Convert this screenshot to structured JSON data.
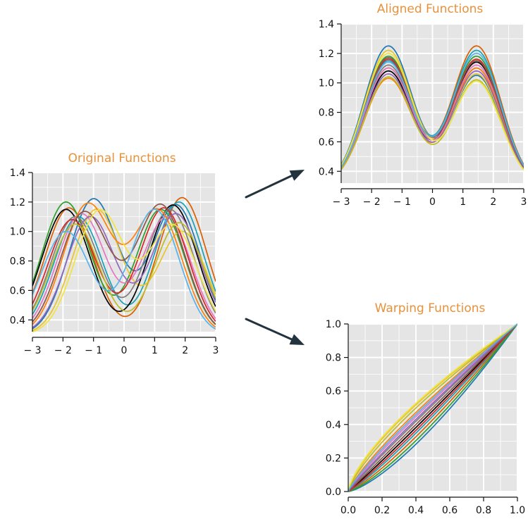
{
  "chart_data": [
    {
      "id": "original",
      "type": "line",
      "title": "Original Functions",
      "xlabel": "",
      "ylabel": "",
      "xlim": [
        -3,
        3
      ],
      "ylim": [
        0.32,
        1.4
      ],
      "grid": true,
      "x_ticks": [
        -3,
        -2,
        -1,
        0,
        1,
        2,
        3
      ],
      "x_tick_labels": [
        "− 3",
        "− 2",
        "− 1",
        "0",
        "1",
        "2",
        "3"
      ],
      "y_ticks": [
        0.4,
        0.6,
        0.8,
        1.0,
        1.2,
        1.4
      ],
      "y_tick_labels": [
        "0.4",
        "0.6",
        "0.8",
        "1.0",
        "1.2",
        "1.4"
      ],
      "function_model": "y = base + a1*exp(-(x-m1)^2/(2*0.8^2)) + a2*exp(-(x-m2)^2/(2*0.8^2))",
      "base": 0.3,
      "series": [
        {
          "color": "#1f77b4",
          "a1": 0.92,
          "m1": -1.0,
          "a2": 0.88,
          "m2": 1.7
        },
        {
          "color": "#d95f02",
          "a1": 0.86,
          "m1": -1.8,
          "a2": 0.93,
          "m2": 1.9
        },
        {
          "color": "#2ca02c",
          "a1": 0.9,
          "m1": -1.9,
          "a2": 0.85,
          "m2": 1.2
        },
        {
          "color": "#17a2b8",
          "a1": 0.8,
          "m1": -1.5,
          "a2": 0.9,
          "m2": 1.8
        },
        {
          "color": "#e8c42a",
          "a1": 0.85,
          "m1": -0.9,
          "a2": 0.7,
          "m2": 1.9
        },
        {
          "color": "#000000",
          "a1": 0.85,
          "m1": -1.9,
          "a2": 0.88,
          "m2": 1.6
        },
        {
          "color": "#7f7f7f",
          "a1": 0.8,
          "m1": -1.6,
          "a2": 0.85,
          "m2": 1.5
        },
        {
          "color": "#e377c2",
          "a1": 0.82,
          "m1": -1.4,
          "a2": 0.8,
          "m2": 1.4
        },
        {
          "color": "#ff7f0e",
          "a1": 0.88,
          "m1": -1.2,
          "a2": 0.84,
          "m2": 1.1
        },
        {
          "color": "#d62728",
          "a1": 0.78,
          "m1": -1.7,
          "a2": 0.86,
          "m2": 1.3
        },
        {
          "color": "#9467bd",
          "a1": 0.8,
          "m1": -1.1,
          "a2": 0.82,
          "m2": 1.7
        },
        {
          "color": "#8c564b",
          "a1": 0.83,
          "m1": -1.3,
          "a2": 0.88,
          "m2": 1.2
        },
        {
          "color": "#bcbd22",
          "a1": 0.75,
          "m1": -1.6,
          "a2": 0.76,
          "m2": 1.8
        },
        {
          "color": "#f0e442",
          "a1": 0.84,
          "m1": -0.8,
          "a2": 0.74,
          "m2": 1.6
        },
        {
          "color": "#56b4e9",
          "a1": 0.7,
          "m1": -1.9,
          "a2": 0.85,
          "m2": 1.0
        }
      ]
    },
    {
      "id": "aligned",
      "type": "line",
      "title": "Aligned Functions",
      "xlabel": "",
      "ylabel": "",
      "xlim": [
        -3,
        3
      ],
      "ylim": [
        0.32,
        1.4
      ],
      "grid": true,
      "x_ticks": [
        -3,
        -2,
        -1,
        0,
        1,
        2,
        3
      ],
      "x_tick_labels": [
        "− 3",
        "− 2",
        "− 1",
        "0",
        "1",
        "2",
        "3"
      ],
      "y_ticks": [
        0.4,
        0.6,
        0.8,
        1.0,
        1.2,
        1.4
      ],
      "y_tick_labels": [
        "0.4",
        "0.6",
        "0.8",
        "1.0",
        "1.2",
        "1.4"
      ],
      "function_model": "y = base + a1*exp(-(x+1.45)^2/(2*0.8^2)) + a2*exp(-(x-1.45)^2/(2*0.8^2))",
      "base": 0.3,
      "series": [
        {
          "color": "#1f77b4",
          "a1": 0.95,
          "a2": 0.75
        },
        {
          "color": "#d95f02",
          "a1": 0.8,
          "a2": 0.95
        },
        {
          "color": "#2ca02c",
          "a1": 0.88,
          "a2": 0.88
        },
        {
          "color": "#17a2b8",
          "a1": 0.85,
          "a2": 0.92
        },
        {
          "color": "#e8c42a",
          "a1": 0.92,
          "a2": 0.76
        },
        {
          "color": "#000000",
          "a1": 0.78,
          "a2": 0.84
        },
        {
          "color": "#7f7f7f",
          "a1": 0.82,
          "a2": 0.8
        },
        {
          "color": "#e377c2",
          "a1": 0.8,
          "a2": 0.82
        },
        {
          "color": "#ff7f0e",
          "a1": 0.73,
          "a2": 0.8
        },
        {
          "color": "#d62728",
          "a1": 0.86,
          "a2": 0.86
        },
        {
          "color": "#9467bd",
          "a1": 0.76,
          "a2": 0.78
        },
        {
          "color": "#8c564b",
          "a1": 0.87,
          "a2": 0.85
        },
        {
          "color": "#bcbd22",
          "a1": 0.74,
          "a2": 0.72
        },
        {
          "color": "#f0e442",
          "a1": 0.9,
          "a2": 0.71
        },
        {
          "color": "#56b4e9",
          "a1": 0.84,
          "a2": 0.9
        }
      ]
    },
    {
      "id": "warping",
      "type": "line",
      "title": "Warping Functions",
      "xlabel": "",
      "ylabel": "",
      "xlim": [
        0,
        1
      ],
      "ylim": [
        0,
        1
      ],
      "grid": true,
      "x_ticks": [
        0,
        0.2,
        0.4,
        0.6,
        0.8,
        1.0
      ],
      "x_tick_labels": [
        "0.0",
        "0.2",
        "0.4",
        "0.6",
        "0.8",
        "1.0"
      ],
      "y_ticks": [
        0,
        0.2,
        0.4,
        0.6,
        0.8,
        1.0
      ],
      "y_tick_labels": [
        "0.0",
        "0.2",
        "0.4",
        "0.6",
        "0.8",
        "1.0"
      ],
      "function_model": "y = x^p",
      "series": [
        {
          "color": "#1f77b4",
          "p": 1.38
        },
        {
          "color": "#d95f02",
          "p": 1.22
        },
        {
          "color": "#2ca02c",
          "p": 1.3
        },
        {
          "color": "#17a2b8",
          "p": 1.15
        },
        {
          "color": "#e8c42a",
          "p": 0.72
        },
        {
          "color": "#000000",
          "p": 1.05
        },
        {
          "color": "#7f7f7f",
          "p": 0.95
        },
        {
          "color": "#e377c2",
          "p": 0.88
        },
        {
          "color": "#ff7f0e",
          "p": 0.82
        },
        {
          "color": "#d62728",
          "p": 1.1
        },
        {
          "color": "#9467bd",
          "p": 0.92
        },
        {
          "color": "#8c564b",
          "p": 1.0
        },
        {
          "color": "#bcbd22",
          "p": 0.76
        },
        {
          "color": "#f0e442",
          "p": 0.7
        },
        {
          "color": "#56b4e9",
          "p": 0.85
        }
      ]
    }
  ],
  "arrows": {
    "color": "#22333d"
  }
}
